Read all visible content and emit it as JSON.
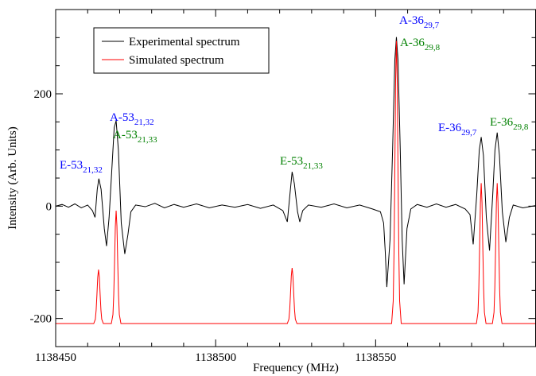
{
  "chart_data": {
    "type": "line",
    "x_label": "Frequency (MHz)",
    "y_label": "Intensity (Arb. Units)",
    "xlim": [
      1138450,
      1138600
    ],
    "ylim": [
      -250,
      350
    ],
    "xticks": [
      1138450,
      1138500,
      1138550
    ],
    "yticks": [
      -200,
      0,
      200
    ],
    "xminorticks": [
      1138460,
      1138470,
      1138480,
      1138490,
      1138510,
      1138520,
      1138530,
      1138540,
      1138560,
      1138570,
      1138580,
      1138590
    ],
    "yminorticks": [
      -150,
      -100,
      -50,
      50,
      100,
      150,
      250,
      300
    ],
    "legend": "upper left",
    "series": [
      {
        "name": "Experimental spectrum",
        "color": "#000000",
        "x": [
          1138450,
          1138452,
          1138454,
          1138456,
          1138458,
          1138460,
          1138461.5,
          1138462.3,
          1138463.0,
          1138463.5,
          1138464.2,
          1138465.2,
          1138465.9,
          1138466.7,
          1138467.5,
          1138468.3,
          1138468.9,
          1138469.6,
          1138470.5,
          1138471.6,
          1138472.6,
          1138473.5,
          1138475,
          1138478,
          1138481,
          1138484,
          1138487,
          1138490,
          1138494,
          1138498,
          1138502,
          1138506,
          1138510,
          1138514,
          1138518,
          1138521,
          1138522.4,
          1138523.2,
          1138523.9,
          1138524.6,
          1138525.6,
          1138526.3,
          1138527.2,
          1138529,
          1138533,
          1138537,
          1138541,
          1138545,
          1138549,
          1138551.5,
          1138552.5,
          1138553.0,
          1138553.5,
          1138554.5,
          1138555.3,
          1138556.0,
          1138556.5,
          1138557.0,
          1138557.7,
          1138558.3,
          1138558.9,
          1138559.8,
          1138561,
          1138563,
          1138566,
          1138569,
          1138572,
          1138575,
          1138578,
          1138579.5,
          1138580.5,
          1138581.6,
          1138582.4,
          1138583.0,
          1138583.7,
          1138584.6,
          1138585.6,
          1138586.6,
          1138587.3,
          1138588.0,
          1138588.7,
          1138589.6,
          1138590.7,
          1138591.8,
          1138593,
          1138596,
          1138600
        ],
        "values": [
          0,
          3,
          -2,
          4,
          -3,
          2,
          -8,
          -20,
          30,
          49,
          30,
          -40,
          -71,
          -20,
          60,
          140,
          152,
          100,
          -30,
          -85,
          -50,
          -10,
          2,
          -1,
          5,
          -3,
          3,
          -2,
          4,
          -3,
          2,
          -2,
          3,
          -4,
          2,
          -8,
          -28,
          20,
          61,
          40,
          -10,
          -28,
          -8,
          2,
          -2,
          4,
          -3,
          2,
          -5,
          -10,
          -30,
          -80,
          -144,
          -60,
          100,
          260,
          301,
          260,
          100,
          -60,
          -139,
          -40,
          -5,
          3,
          -2,
          4,
          -2,
          3,
          -5,
          -15,
          -68,
          20,
          100,
          123,
          90,
          -20,
          -79,
          20,
          100,
          131,
          90,
          -10,
          -64,
          -20,
          2,
          -3,
          1
        ]
      },
      {
        "name": "Simulated spectrum",
        "color": "#ff0000",
        "x": [
          1138450,
          1138461.9,
          1138462.4,
          1138462.65,
          1138462.9,
          1138463.15,
          1138463.4,
          1138463.65,
          1138463.9,
          1138464.15,
          1138464.4,
          1138464.9,
          1138467.4,
          1138467.9,
          1138468.15,
          1138468.4,
          1138468.65,
          1138468.9,
          1138469.15,
          1138469.4,
          1138469.65,
          1138469.9,
          1138470.4,
          1138522.4,
          1138522.9,
          1138523.15,
          1138523.4,
          1138523.65,
          1138523.9,
          1138524.15,
          1138524.4,
          1138524.65,
          1138524.9,
          1138525.4,
          1138555,
          1138555.5,
          1138555.75,
          1138556,
          1138556.25,
          1138556.5,
          1138556.75,
          1138557,
          1138557.25,
          1138557.5,
          1138558,
          1138581.5,
          1138582,
          1138582.25,
          1138582.5,
          1138582.75,
          1138583,
          1138583.25,
          1138583.5,
          1138583.75,
          1138584,
          1138584.5,
          1138586.5,
          1138587,
          1138587.25,
          1138587.5,
          1138587.75,
          1138588,
          1138588.25,
          1138588.5,
          1138588.75,
          1138589,
          1138589.5,
          1138600
        ],
        "values": [
          -209,
          -209,
          -201.3,
          -185,
          -157.2,
          -126.4,
          -113,
          -126.4,
          -157.2,
          -185,
          -201.3,
          -209,
          -209,
          -192.9,
          -158.8,
          -100.5,
          -36.1,
          -8,
          -36.1,
          -100.5,
          -158.8,
          -192.9,
          -209,
          -209,
          -201.1,
          -184.3,
          -155.5,
          -123.9,
          -110,
          -123.9,
          -155.5,
          -184.3,
          -201.1,
          -209,
          -209,
          -168.8,
          -83.3,
          62.6,
          223.6,
          294,
          223.6,
          62.6,
          -83.3,
          -168.8,
          -209,
          -209,
          -189,
          -146.5,
          -74,
          6,
          41,
          6,
          -74,
          -146.5,
          -189,
          -209,
          -209,
          -189,
          -146.5,
          -74,
          6,
          41,
          6,
          -74,
          -146.5,
          -189,
          -209,
          -209
        ]
      }
    ],
    "annotations": [
      {
        "text": "E-53",
        "sub": "21,32",
        "color": "#0000ff"
      },
      {
        "text": "A-53",
        "sub": "21,32",
        "color": "#0000ff"
      },
      {
        "text": "A-53",
        "sub": "21,33",
        "color": "#008000"
      },
      {
        "text": "E-53",
        "sub": "21,33",
        "color": "#008000"
      },
      {
        "text": "A-36",
        "sub": "29,7",
        "color": "#0000ff"
      },
      {
        "text": "A-36",
        "sub": "29,8",
        "color": "#008000"
      },
      {
        "text": "E-36",
        "sub": "29,7",
        "color": "#0000ff"
      },
      {
        "text": "E-36",
        "sub": "29,8",
        "color": "#008000"
      }
    ]
  }
}
